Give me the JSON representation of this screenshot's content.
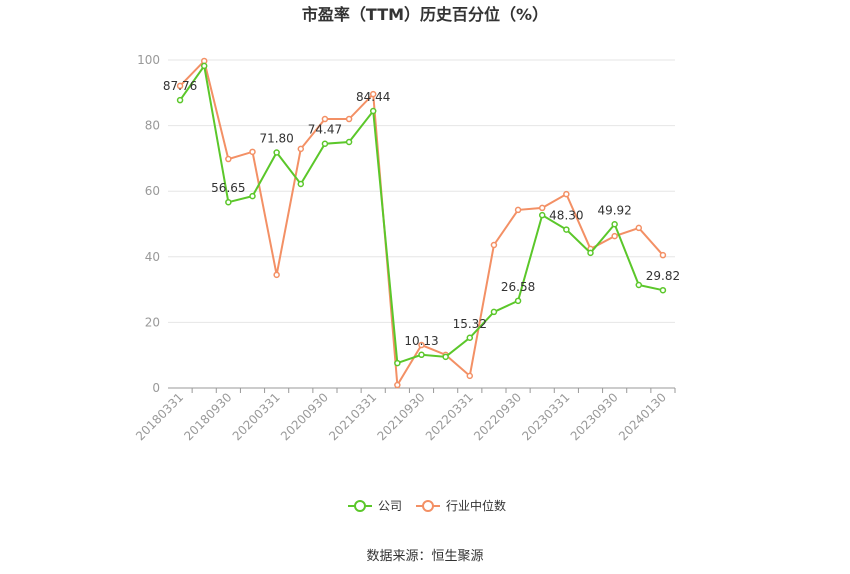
{
  "chart_data": {
    "type": "line",
    "title": "市盈率（TTM）历史百分位（%）",
    "source": "数据来源：恒生聚源",
    "categories": [
      "20180331",
      null,
      "20180930",
      null,
      "20200331",
      null,
      "20200930",
      null,
      "20210331",
      null,
      "20210930",
      null,
      "20220331",
      null,
      "20220930",
      null,
      "20230331",
      null,
      "20230930",
      null,
      "20240130"
    ],
    "series": [
      {
        "name": "公司",
        "color": "#5bc72a",
        "values": [
          87.76,
          98.2,
          56.65,
          58.5,
          71.8,
          62.2,
          74.47,
          75.0,
          84.44,
          7.6,
          10.13,
          9.5,
          15.32,
          23.2,
          26.58,
          52.7,
          48.3,
          41.2,
          49.92,
          31.4,
          29.82
        ],
        "value_labels": [
          "87.76",
          null,
          "56.65",
          null,
          "71.80",
          null,
          "74.47",
          null,
          "84.44",
          null,
          "10.13",
          null,
          "15.32",
          null,
          "26.58",
          null,
          "48.30",
          null,
          "49.92",
          null,
          "29.82"
        ]
      },
      {
        "name": "行业中位数",
        "color": "#f39065",
        "values": [
          92.1,
          99.7,
          69.8,
          72.0,
          34.5,
          72.9,
          82.0,
          82.0,
          89.6,
          0.9,
          13.1,
          10.1,
          3.7,
          43.6,
          54.3,
          54.9,
          59.1,
          42.4,
          46.3,
          48.8,
          40.5
        ]
      }
    ],
    "ylim": [
      0,
      100
    ],
    "yticks": [
      0,
      20,
      40,
      60,
      80,
      100
    ],
    "grid": true,
    "legend": "bottom"
  }
}
